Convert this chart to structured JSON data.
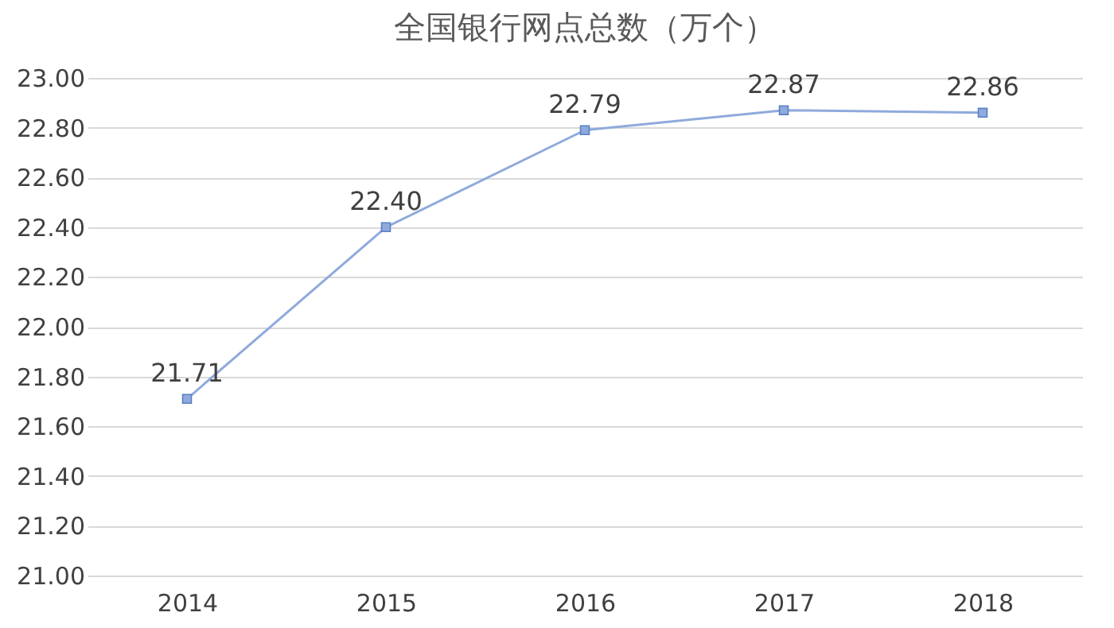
{
  "chart_data": {
    "type": "line",
    "title": "全国银行网点总数（万个）",
    "categories": [
      "2014",
      "2015",
      "2016",
      "2017",
      "2018"
    ],
    "series": [
      {
        "color": "#8faadc",
        "values": [
          21.71,
          22.4,
          22.79,
          22.87,
          22.86
        ],
        "value_labels": [
          "21.71",
          "22.40",
          "22.79",
          "22.87",
          "22.86"
        ]
      }
    ],
    "ylim": [
      21.0,
      23.0
    ],
    "yticks": [
      {
        "value": 21.0,
        "label": "21.00"
      },
      {
        "value": 21.2,
        "label": "21.20"
      },
      {
        "value": 21.4,
        "label": "21.40"
      },
      {
        "value": 21.6,
        "label": "21.60"
      },
      {
        "value": 21.8,
        "label": "21.80"
      },
      {
        "value": 22.0,
        "label": "22.00"
      },
      {
        "value": 22.2,
        "label": "22.20"
      },
      {
        "value": 22.4,
        "label": "22.40"
      },
      {
        "value": 22.6,
        "label": "22.60"
      },
      {
        "value": 22.8,
        "label": "22.80"
      },
      {
        "value": 23.0,
        "label": "23.00"
      }
    ],
    "grid": "y",
    "marker": "square",
    "line_style": "solid"
  }
}
